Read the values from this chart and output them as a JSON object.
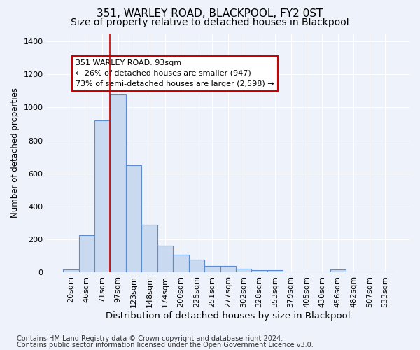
{
  "title1": "351, WARLEY ROAD, BLACKPOOL, FY2 0ST",
  "title2": "Size of property relative to detached houses in Blackpool",
  "xlabel": "Distribution of detached houses by size in Blackpool",
  "ylabel": "Number of detached properties",
  "categories": [
    "20sqm",
    "46sqm",
    "71sqm",
    "97sqm",
    "123sqm",
    "148sqm",
    "174sqm",
    "200sqm",
    "225sqm",
    "251sqm",
    "277sqm",
    "302sqm",
    "328sqm",
    "353sqm",
    "379sqm",
    "405sqm",
    "430sqm",
    "456sqm",
    "482sqm",
    "507sqm",
    "533sqm"
  ],
  "values": [
    15,
    225,
    920,
    1080,
    650,
    290,
    160,
    105,
    75,
    40,
    40,
    22,
    14,
    14,
    0,
    0,
    0,
    15,
    0,
    0,
    0
  ],
  "bar_color": "#c9d9f0",
  "bar_edge_color": "#5b8bd0",
  "bar_edge_width": 0.8,
  "vline_color": "#cc0000",
  "annotation_text": "351 WARLEY ROAD: 93sqm\n← 26% of detached houses are smaller (947)\n73% of semi-detached houses are larger (2,598) →",
  "annotation_box_color": "#ffffff",
  "annotation_edge_color": "#cc0000",
  "ylim": [
    0,
    1450
  ],
  "yticks": [
    0,
    200,
    400,
    600,
    800,
    1000,
    1200,
    1400
  ],
  "bg_color": "#eef2fb",
  "grid_color": "#ffffff",
  "footer1": "Contains HM Land Registry data © Crown copyright and database right 2024.",
  "footer2": "Contains public sector information licensed under the Open Government Licence v3.0.",
  "title1_fontsize": 11,
  "title2_fontsize": 10,
  "xlabel_fontsize": 9.5,
  "ylabel_fontsize": 8.5,
  "tick_fontsize": 8,
  "footer_fontsize": 7,
  "annot_fontsize": 8
}
